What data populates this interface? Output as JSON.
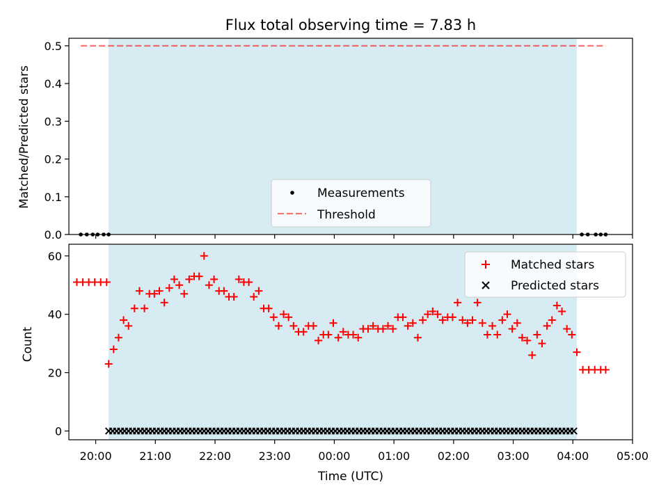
{
  "chart_data": [
    {
      "type": "scatter",
      "title": "Flux total observing time = 7.83 h",
      "ylabel": "Matched/Predicted stars",
      "xlim": [
        "19:33",
        "05:00"
      ],
      "ylim": [
        0,
        0.52
      ],
      "yticks": [
        "0.0",
        "0.1",
        "0.2",
        "0.3",
        "0.4",
        "0.5"
      ],
      "observing_window": {
        "start": "20:13",
        "end": "04:04"
      },
      "threshold": 0.5,
      "threshold_span": [
        "19:45",
        "04:33"
      ],
      "series": [
        {
          "name": "Measurements",
          "x": [
            "19:45",
            "19:51",
            "19:57",
            "20:02",
            "20:08",
            "20:13",
            "04:09",
            "04:15",
            "04:23",
            "04:28",
            "04:33"
          ],
          "y": [
            0,
            0,
            0,
            0,
            0,
            0,
            0,
            0,
            0,
            0,
            0
          ]
        },
        {
          "name": "Threshold",
          "x": [
            "19:45",
            "04:33"
          ],
          "y": [
            0.5,
            0.5
          ]
        }
      ],
      "legend": {
        "location": "lower center",
        "entries": [
          {
            "label": "Measurements"
          },
          {
            "label": "Threshold"
          }
        ]
      },
      "colors": {
        "window": "#add8e6",
        "threshold": "#ff0000",
        "measure": "#000000"
      }
    },
    {
      "type": "scatter",
      "xlabel": "Time (UTC)",
      "ylabel": "Count",
      "xlim": [
        "19:33",
        "05:00"
      ],
      "ylim": [
        -3,
        64
      ],
      "yticks": [
        "0",
        "20",
        "40",
        "60"
      ],
      "xticks": [
        "20:00",
        "21:00",
        "22:00",
        "23:00",
        "00:00",
        "01:00",
        "02:00",
        "03:00",
        "04:00",
        "05:00"
      ],
      "observing_window": {
        "start": "20:13",
        "end": "04:04"
      },
      "series": [
        {
          "name": "Matched stars",
          "marker": "+",
          "x": [
            "19:41",
            "19:47",
            "19:53",
            "19:59",
            "20:05",
            "20:11",
            "20:13",
            "20:18",
            "20:23",
            "20:28",
            "20:33",
            "20:39",
            "20:44",
            "20:49",
            "20:54",
            "20:59",
            "21:04",
            "21:09",
            "21:14",
            "21:19",
            "21:24",
            "21:29",
            "21:34",
            "21:39",
            "21:44",
            "21:49",
            "21:54",
            "21:59",
            "22:04",
            "22:09",
            "22:14",
            "22:19",
            "22:24",
            "22:29",
            "22:34",
            "22:39",
            "22:44",
            "22:49",
            "22:54",
            "22:59",
            "23:04",
            "23:09",
            "23:14",
            "23:19",
            "23:24",
            "23:29",
            "23:34",
            "23:39",
            "23:44",
            "23:49",
            "23:54",
            "23:59",
            "00:04",
            "00:09",
            "00:14",
            "00:19",
            "00:24",
            "00:29",
            "00:34",
            "00:39",
            "00:44",
            "00:49",
            "00:54",
            "00:59",
            "01:04",
            "01:09",
            "01:14",
            "01:19",
            "01:24",
            "01:29",
            "01:34",
            "01:39",
            "01:44",
            "01:49",
            "01:54",
            "01:59",
            "02:04",
            "02:09",
            "02:14",
            "02:19",
            "02:24",
            "02:29",
            "02:34",
            "02:39",
            "02:44",
            "02:49",
            "02:54",
            "02:59",
            "03:04",
            "03:09",
            "03:14",
            "03:19",
            "03:24",
            "03:29",
            "03:34",
            "03:39",
            "03:44",
            "03:49",
            "03:54",
            "03:59",
            "04:04",
            "04:10",
            "04:16",
            "04:22",
            "04:28",
            "04:33"
          ],
          "y": [
            51,
            51,
            51,
            51,
            51,
            51,
            23,
            28,
            32,
            38,
            36,
            42,
            48,
            42,
            47,
            47,
            48,
            44,
            49,
            52,
            50,
            47,
            52,
            53,
            53,
            60,
            50,
            52,
            48,
            48,
            46,
            46,
            52,
            51,
            51,
            46,
            48,
            42,
            42,
            39,
            36,
            40,
            39,
            36,
            34,
            34,
            36,
            36,
            31,
            33,
            33,
            37,
            32,
            34,
            33,
            33,
            32,
            35,
            35,
            36,
            35,
            35,
            36,
            35,
            39,
            39,
            36,
            37,
            32,
            38,
            40,
            41,
            40,
            38,
            39,
            39,
            44,
            38,
            37,
            38,
            44,
            37,
            33,
            36,
            33,
            38,
            40,
            35,
            37,
            32,
            31,
            26,
            33,
            30,
            36,
            38,
            43,
            41,
            35,
            33,
            27,
            21,
            21,
            21,
            21,
            21
          ]
        },
        {
          "name": "Predicted stars",
          "marker": "x",
          "x": [
            "20:13",
            "04:04"
          ],
          "y": [
            0,
            0
          ],
          "every_minutes": 4
        }
      ],
      "legend": {
        "location": "upper right",
        "entries": [
          {
            "label": "Matched stars"
          },
          {
            "label": "Predicted stars"
          }
        ]
      },
      "colors": {
        "window": "#add8e6",
        "matched": "#ff0000",
        "predicted": "#000000"
      }
    }
  ]
}
